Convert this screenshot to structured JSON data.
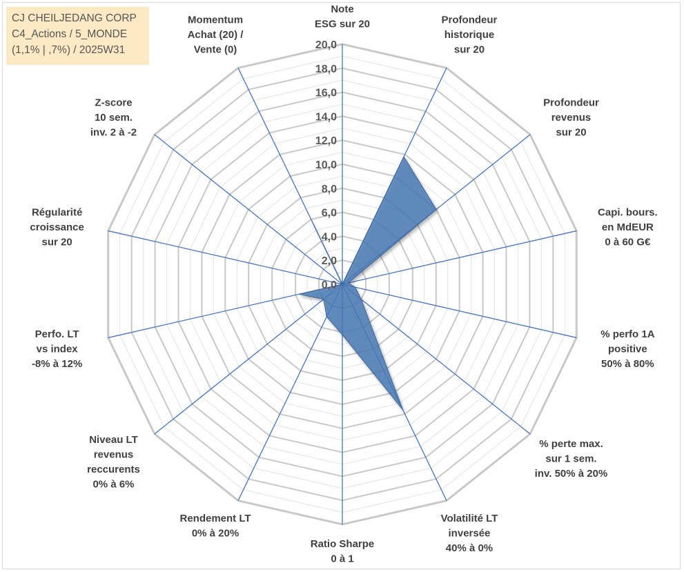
{
  "title_box": {
    "line1": "CJ CHEILJEDANG CORP",
    "line2": "C4_Actions / 5_MONDE",
    "line3": "(1,1% | ,7%) / 2025W31"
  },
  "chart_data": {
    "type": "radar",
    "rmin": 0,
    "rmax": 20,
    "tick_step": 2,
    "minor_step": 1,
    "tick_labels": [
      "0,0",
      "2,0",
      "4,0",
      "6,0",
      "8,0",
      "10,0",
      "12,0",
      "14,0",
      "16,0",
      "18,0",
      "20,0"
    ],
    "axes": [
      [
        "Note",
        "ESG sur 20"
      ],
      [
        "Profondeur",
        "historique",
        "sur 20"
      ],
      [
        "Profondeur",
        "revenus",
        "sur 20"
      ],
      [
        "Capi. bours.",
        "en MdEUR",
        "0 à 60 G€"
      ],
      [
        "% perfo 1A",
        "positive",
        "50% à 80%"
      ],
      [
        "% perte max.",
        "sur 1 sem.",
        "inv. 50% à 20%"
      ],
      [
        "Volatilité LT",
        "inversée",
        "40% à 0%"
      ],
      [
        "Ratio Sharpe",
        "0 à 1"
      ],
      [
        "Rendement LT",
        "0% à 20%"
      ],
      [
        "Niveau LT",
        "revenus",
        "reccurents",
        "0% à 6%"
      ],
      [
        "Perfo. LT",
        "vs index",
        "-8% à 12%"
      ],
      [
        "Régularité",
        "croissance",
        "sur 20"
      ],
      [
        "Z-score",
        "10 sem.",
        "inv. 2 à -2"
      ],
      [
        "Momentum",
        "Achat (20) /",
        "Vente (0)"
      ]
    ],
    "values": [
      0,
      11.8,
      10.0,
      0.5,
      1.1,
      2.0,
      11.6,
      4.2,
      3.0,
      2.0,
      3.7,
      0.0,
      0.0,
      5.8
    ],
    "series_color": "#4a7ab5",
    "grid": true
  }
}
